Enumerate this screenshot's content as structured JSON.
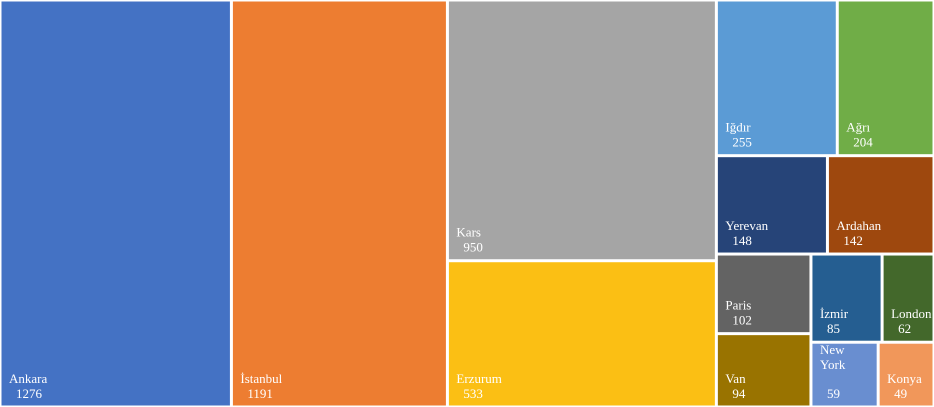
{
  "chart_data": {
    "type": "treemap",
    "categories": [
      "Ankara",
      "İstanbul",
      "Kars",
      "Erzurum",
      "Iğdır",
      "Ağrı",
      "Yerevan",
      "Ardahan",
      "Paris",
      "Van",
      "İzmir",
      "London",
      "New York",
      "Konya"
    ],
    "values": [
      1276,
      1191,
      950,
      533,
      255,
      204,
      148,
      142,
      102,
      94,
      85,
      62,
      59,
      49
    ],
    "colors": [
      "#4472c4",
      "#ed7d31",
      "#a5a5a5",
      "#fbbf14",
      "#5b9bd5",
      "#70ad47",
      "#264478",
      "#9e480e",
      "#636363",
      "#997300",
      "#255e91",
      "#43682b",
      "#698ed0",
      "#f1975a"
    ]
  }
}
